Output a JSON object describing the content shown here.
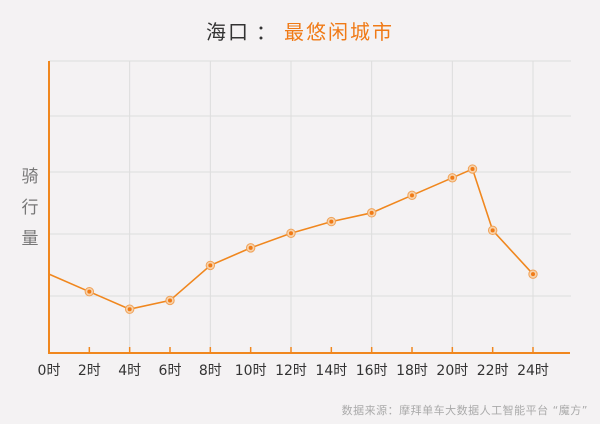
{
  "title": {
    "city": "海口",
    "separator": "：",
    "tag": "最悠闲城市"
  },
  "y_axis_label_chars": [
    "骑",
    "行",
    "量"
  ],
  "source": "数据来源：摩拜单车大数据人工智能平台 “魔方”",
  "colors": {
    "line": "#f0871e",
    "axis": "#f0871e",
    "accent_title": "#f07a16",
    "grid": "#dddddd",
    "background": "#f4f2f3"
  },
  "chart_data": {
    "type": "line",
    "title": "海口：最悠闲城市",
    "xlabel": "",
    "ylabel": "骑行量",
    "x_tick_labels": [
      "0时",
      "2时",
      "4时",
      "6时",
      "8时",
      "10时",
      "12时",
      "14时",
      "16时",
      "18时",
      "20时",
      "22时",
      "24时"
    ],
    "x": [
      0,
      2,
      4,
      6,
      8,
      10,
      12,
      14,
      16,
      18,
      20,
      21,
      22,
      24
    ],
    "series": [
      {
        "name": "骑行量",
        "values": [
          27,
          21,
          15,
          18,
          30,
          36,
          41,
          45,
          48,
          54,
          60,
          63,
          42,
          27
        ]
      }
    ],
    "xlim": [
      0,
      24
    ],
    "ylim": [
      0,
      100
    ],
    "y_units": "relative (no tick labels shown)",
    "grid": true,
    "legend": "none"
  }
}
